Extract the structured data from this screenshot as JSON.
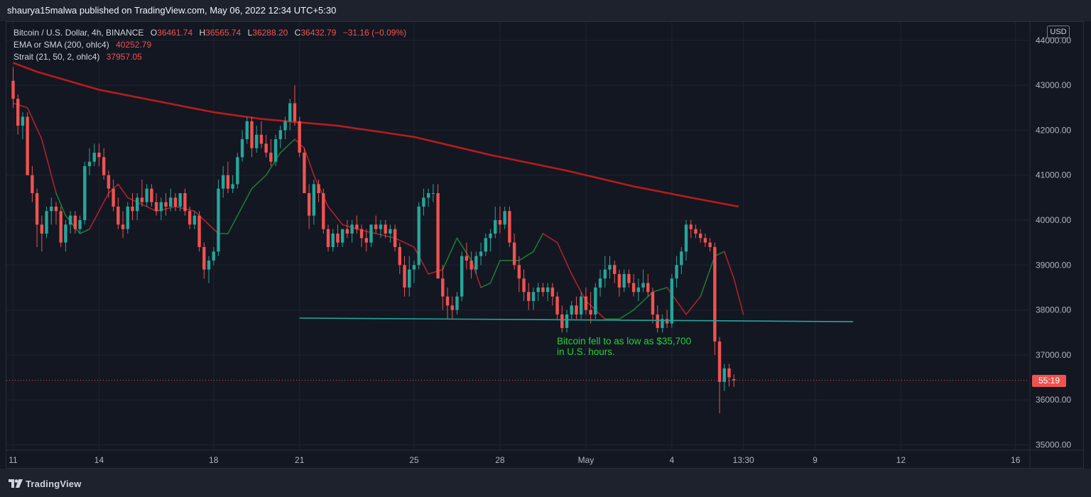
{
  "header": {
    "publisher_line": "shaurya15malwa published on TradingView.com, May 06, 2022 12:34 UTC+5:30"
  },
  "legend": {
    "symbol": "Bitcoin / U.S. Dollar, 4h, BINANCE",
    "o_label": "O",
    "o_value": "36461.74",
    "h_label": "H",
    "h_value": "36565.74",
    "l_label": "L",
    "l_value": "36288.20",
    "c_label": "C",
    "c_value": "36432.79",
    "change": "−31.16 (−0.09%)",
    "ind1_label": "EMA or SMA (200, ohlc4)",
    "ind1_value": "40252.79",
    "ind2_label": "Strait (21, 50, 2, ohlc4)",
    "ind2_value": "37957.05"
  },
  "axis": {
    "currency_badge": "USD",
    "countdown_label": "55:19"
  },
  "annotation": {
    "line1": "Bitcoin fell to as low as $35,700",
    "line2": "in U.S. hours."
  },
  "footer": {
    "brand": "TradingView"
  },
  "colors": {
    "background": "#131722",
    "bull": "#26a69a",
    "bear": "#ef5350",
    "ma200": "#b71c1c",
    "strait_up": "#1b7a33",
    "strait_down": "#b0212b",
    "support": "#26a69a",
    "annotation": "#22d334"
  },
  "chart_data": {
    "type": "candlestick",
    "timeframe": "4h",
    "y_ticks": [
      35000,
      36000,
      37000,
      38000,
      39000,
      40000,
      41000,
      42000,
      43000,
      44000
    ],
    "y_tick_labels": [
      "35000.00",
      "36000.00",
      "37000.00",
      "38000.00",
      "39000.00",
      "40000.00",
      "41000.00",
      "42000.00",
      "43000.00",
      "44000.00"
    ],
    "ylim": [
      34900,
      44500
    ],
    "x_ticks": [
      {
        "label": "11",
        "bar": 0
      },
      {
        "label": "14",
        "bar": 18
      },
      {
        "label": "18",
        "bar": 42
      },
      {
        "label": "21",
        "bar": 60
      },
      {
        "label": "25",
        "bar": 84
      },
      {
        "label": "28",
        "bar": 102
      },
      {
        "label": "May",
        "bar": 120
      },
      {
        "label": "4",
        "bar": 138
      },
      {
        "label": "13:30",
        "bar": 153
      },
      {
        "label": "9",
        "bar": 168
      },
      {
        "label": "12",
        "bar": 186
      },
      {
        "label": "16",
        "bar": 210
      }
    ],
    "candles_ohlc": [
      [
        43100,
        43400,
        42500,
        42700
      ],
      [
        42700,
        42800,
        41900,
        42100
      ],
      [
        42100,
        42400,
        41800,
        42300
      ],
      [
        42300,
        42400,
        41000,
        41000
      ],
      [
        41000,
        41200,
        40400,
        40600
      ],
      [
        40600,
        40700,
        39400,
        39900
      ],
      [
        39900,
        40100,
        39300,
        39700
      ],
      [
        39700,
        40300,
        39600,
        40200
      ],
      [
        40200,
        40500,
        39900,
        40300
      ],
      [
        40300,
        40400,
        39900,
        40200
      ],
      [
        40200,
        40300,
        39400,
        39500
      ],
      [
        39500,
        40000,
        39300,
        39900
      ],
      [
        39900,
        40200,
        39700,
        40100
      ],
      [
        40100,
        40200,
        39700,
        39800
      ],
      [
        39800,
        40100,
        39700,
        40000
      ],
      [
        40000,
        41300,
        39900,
        41200
      ],
      [
        41200,
        41600,
        41000,
        41300
      ],
      [
        41300,
        41700,
        41200,
        41500
      ],
      [
        41500,
        41700,
        41200,
        41400
      ],
      [
        41400,
        41600,
        40900,
        41000
      ],
      [
        41000,
        41100,
        40500,
        40700
      ],
      [
        40700,
        40900,
        40200,
        40300
      ],
      [
        40300,
        40500,
        39800,
        39900
      ],
      [
        39900,
        40200,
        39600,
        39800
      ],
      [
        39800,
        40400,
        39700,
        40300
      ],
      [
        40300,
        40600,
        40000,
        40200
      ],
      [
        40200,
        40600,
        40000,
        40500
      ],
      [
        40500,
        40900,
        40300,
        40400
      ],
      [
        40400,
        40800,
        40300,
        40700
      ],
      [
        40700,
        40800,
        40300,
        40400
      ],
      [
        40400,
        40600,
        40100,
        40200
      ],
      [
        40200,
        40500,
        40000,
        40400
      ],
      [
        40400,
        40600,
        40100,
        40300
      ],
      [
        40300,
        40700,
        40200,
        40500
      ],
      [
        40500,
        40600,
        40200,
        40300
      ],
      [
        40300,
        40600,
        40200,
        40600
      ],
      [
        40600,
        40700,
        40100,
        40200
      ],
      [
        40200,
        40300,
        39800,
        39900
      ],
      [
        39900,
        40200,
        39800,
        40100
      ],
      [
        40100,
        40200,
        39300,
        39400
      ],
      [
        39400,
        39500,
        38700,
        38900
      ],
      [
        38900,
        39200,
        38600,
        39100
      ],
      [
        39100,
        39400,
        39000,
        39300
      ],
      [
        39300,
        40900,
        39200,
        40700
      ],
      [
        40700,
        41200,
        40500,
        41000
      ],
      [
        41000,
        41300,
        40600,
        40700
      ],
      [
        40700,
        41000,
        40600,
        40800
      ],
      [
        40800,
        41500,
        40700,
        41400
      ],
      [
        41400,
        42000,
        41300,
        41800
      ],
      [
        41800,
        42300,
        41700,
        42200
      ],
      [
        42200,
        42300,
        41400,
        41600
      ],
      [
        41600,
        42100,
        41500,
        41900
      ],
      [
        41900,
        42200,
        41600,
        41700
      ],
      [
        41700,
        41900,
        41400,
        41500
      ],
      [
        41500,
        41800,
        41200,
        41300
      ],
      [
        41300,
        41900,
        41200,
        41800
      ],
      [
        41800,
        42100,
        41600,
        42000
      ],
      [
        42000,
        42300,
        41800,
        42200
      ],
      [
        42200,
        42700,
        42000,
        42600
      ],
      [
        42600,
        43000,
        42100,
        42200
      ],
      [
        42200,
        42300,
        41400,
        41500
      ],
      [
        41500,
        41600,
        40600,
        40600
      ],
      [
        40600,
        40800,
        39800,
        40100
      ],
      [
        40100,
        40900,
        39900,
        40800
      ],
      [
        40800,
        40900,
        40400,
        40600
      ],
      [
        40600,
        40700,
        39700,
        39800
      ],
      [
        39800,
        39900,
        39300,
        39400
      ],
      [
        39400,
        39800,
        39300,
        39700
      ],
      [
        39700,
        39900,
        39400,
        39500
      ],
      [
        39500,
        39800,
        39400,
        39800
      ],
      [
        39800,
        40000,
        39600,
        39700
      ],
      [
        39700,
        40000,
        39500,
        39900
      ],
      [
        39900,
        40100,
        39700,
        39800
      ],
      [
        39800,
        39900,
        39400,
        39600
      ],
      [
        39600,
        39800,
        39300,
        39500
      ],
      [
        39500,
        39900,
        39400,
        39900
      ],
      [
        39900,
        40100,
        39700,
        39800
      ],
      [
        39800,
        40000,
        39600,
        39900
      ],
      [
        39900,
        40000,
        39600,
        39700
      ],
      [
        39700,
        39900,
        39500,
        39800
      ],
      [
        39800,
        39900,
        39300,
        39400
      ],
      [
        39400,
        39500,
        38800,
        39000
      ],
      [
        39000,
        39200,
        38300,
        38500
      ],
      [
        38500,
        39200,
        38300,
        38900
      ],
      [
        38900,
        39100,
        38600,
        39000
      ],
      [
        39000,
        40400,
        38900,
        40300
      ],
      [
        40300,
        40700,
        40100,
        40500
      ],
      [
        40500,
        40700,
        40300,
        40600
      ],
      [
        40600,
        40800,
        40400,
        40600
      ],
      [
        40600,
        40800,
        38700,
        38700
      ],
      [
        38700,
        39000,
        38000,
        38300
      ],
      [
        38300,
        38500,
        37800,
        38100
      ],
      [
        38100,
        38300,
        37800,
        38000
      ],
      [
        38000,
        38400,
        37900,
        38300
      ],
      [
        38300,
        39300,
        38200,
        39200
      ],
      [
        39200,
        39500,
        38900,
        39100
      ],
      [
        39100,
        39300,
        38700,
        38900
      ],
      [
        38900,
        39300,
        38800,
        39200
      ],
      [
        39200,
        39500,
        39000,
        39300
      ],
      [
        39300,
        39700,
        39200,
        39600
      ],
      [
        39600,
        39800,
        39300,
        39700
      ],
      [
        39700,
        40300,
        39600,
        40000
      ],
      [
        40000,
        40300,
        39700,
        39900
      ],
      [
        39900,
        40300,
        39800,
        40200
      ],
      [
        40200,
        40300,
        39400,
        39500
      ],
      [
        39500,
        39700,
        38900,
        39000
      ],
      [
        39000,
        39200,
        38400,
        38700
      ],
      [
        38700,
        38900,
        38200,
        38400
      ],
      [
        38400,
        38600,
        38000,
        38200
      ],
      [
        38200,
        38500,
        38000,
        38400
      ],
      [
        38400,
        38600,
        38200,
        38500
      ],
      [
        38500,
        38600,
        38300,
        38400
      ],
      [
        38400,
        38600,
        38200,
        38500
      ],
      [
        38500,
        38600,
        38100,
        38300
      ],
      [
        38300,
        38400,
        37800,
        37900
      ],
      [
        37900,
        38100,
        37500,
        37600
      ],
      [
        37600,
        38000,
        37500,
        37900
      ],
      [
        37900,
        38200,
        37800,
        38100
      ],
      [
        38100,
        38300,
        37800,
        37900
      ],
      [
        37900,
        38400,
        37800,
        38300
      ],
      [
        38300,
        38500,
        37900,
        38000
      ],
      [
        38000,
        38400,
        37700,
        37900
      ],
      [
        37900,
        38600,
        37800,
        38500
      ],
      [
        38500,
        38900,
        38300,
        38700
      ],
      [
        38700,
        39200,
        38500,
        38900
      ],
      [
        38900,
        39200,
        38700,
        39000
      ],
      [
        39000,
        39100,
        38600,
        38800
      ],
      [
        38800,
        38900,
        38300,
        38500
      ],
      [
        38500,
        38900,
        38400,
        38800
      ],
      [
        38800,
        38900,
        38500,
        38600
      ],
      [
        38600,
        38800,
        38300,
        38400
      ],
      [
        38400,
        38700,
        38200,
        38500
      ],
      [
        38500,
        38900,
        38400,
        38600
      ],
      [
        38600,
        38800,
        38300,
        38400
      ],
      [
        38400,
        38500,
        37700,
        37900
      ],
      [
        37900,
        38100,
        37500,
        37600
      ],
      [
        37600,
        37900,
        37500,
        37800
      ],
      [
        37800,
        38000,
        37600,
        37700
      ],
      [
        37700,
        38800,
        37600,
        38700
      ],
      [
        38700,
        39200,
        38500,
        39000
      ],
      [
        39000,
        39400,
        38800,
        39300
      ],
      [
        39300,
        40000,
        39100,
        39900
      ],
      [
        39900,
        40000,
        39600,
        39800
      ],
      [
        39800,
        39900,
        39600,
        39700
      ],
      [
        39700,
        39800,
        39500,
        39600
      ],
      [
        39600,
        39700,
        39400,
        39500
      ],
      [
        39500,
        39600,
        39300,
        39400
      ],
      [
        39400,
        39500,
        37000,
        37300
      ],
      [
        37300,
        37400,
        35700,
        36400
      ],
      [
        36400,
        36800,
        36200,
        36700
      ],
      [
        36700,
        36800,
        36300,
        36500
      ],
      [
        36461.74,
        36565.74,
        36288.2,
        36432.79
      ]
    ],
    "ma200_points": [
      [
        0,
        43500
      ],
      [
        5,
        43300
      ],
      [
        18,
        42900
      ],
      [
        42,
        42400
      ],
      [
        52,
        42250
      ],
      [
        68,
        42100
      ],
      [
        84,
        41850
      ],
      [
        100,
        41450
      ],
      [
        116,
        41100
      ],
      [
        130,
        40750
      ],
      [
        142,
        40500
      ],
      [
        152,
        40300
      ]
    ],
    "strait_points": [
      [
        0,
        42600
      ],
      [
        3,
        42500
      ],
      [
        6,
        41800
      ],
      [
        9,
        40600
      ],
      [
        11,
        40100
      ],
      [
        14,
        39700
      ],
      [
        16,
        39800
      ],
      [
        20,
        40600
      ],
      [
        22,
        40800
      ],
      [
        24,
        40500
      ],
      [
        26,
        40400
      ],
      [
        30,
        40200
      ],
      [
        34,
        40300
      ],
      [
        38,
        40200
      ],
      [
        40,
        40000
      ],
      [
        43,
        39700
      ],
      [
        45,
        39700
      ],
      [
        47,
        40100
      ],
      [
        50,
        40700
      ],
      [
        53,
        41000
      ],
      [
        56,
        41500
      ],
      [
        59,
        41800
      ],
      [
        61,
        41600
      ],
      [
        63,
        41000
      ],
      [
        66,
        40300
      ],
      [
        69,
        39900
      ],
      [
        72,
        39800
      ],
      [
        76,
        39700
      ],
      [
        80,
        39600
      ],
      [
        84,
        39400
      ],
      [
        87,
        38800
      ],
      [
        90,
        38900
      ],
      [
        93,
        39600
      ],
      [
        96,
        39100
      ],
      [
        98,
        38500
      ],
      [
        100,
        38600
      ],
      [
        102,
        39100
      ],
      [
        106,
        39100
      ],
      [
        109,
        39300
      ],
      [
        111,
        39700
      ],
      [
        114,
        39500
      ],
      [
        117,
        38800
      ],
      [
        120,
        38200
      ],
      [
        124,
        37800
      ],
      [
        127,
        37800
      ],
      [
        130,
        38000
      ],
      [
        134,
        38400
      ],
      [
        137,
        38500
      ],
      [
        139,
        38200
      ],
      [
        141,
        37900
      ],
      [
        144,
        38300
      ],
      [
        147,
        39200
      ],
      [
        149,
        39300
      ],
      [
        151,
        38700
      ],
      [
        153,
        37900
      ]
    ],
    "strait_up_ranges": [
      [
        9,
        15
      ],
      [
        41,
        59
      ],
      [
        90,
        96
      ],
      [
        98,
        110
      ],
      [
        124,
        135
      ],
      [
        142,
        149
      ]
    ],
    "support_line": {
      "from": [
        60,
        37820
      ],
      "to": [
        176,
        37740
      ]
    },
    "last_price": 36432.79,
    "grid": true,
    "legend_position": "top-left"
  }
}
